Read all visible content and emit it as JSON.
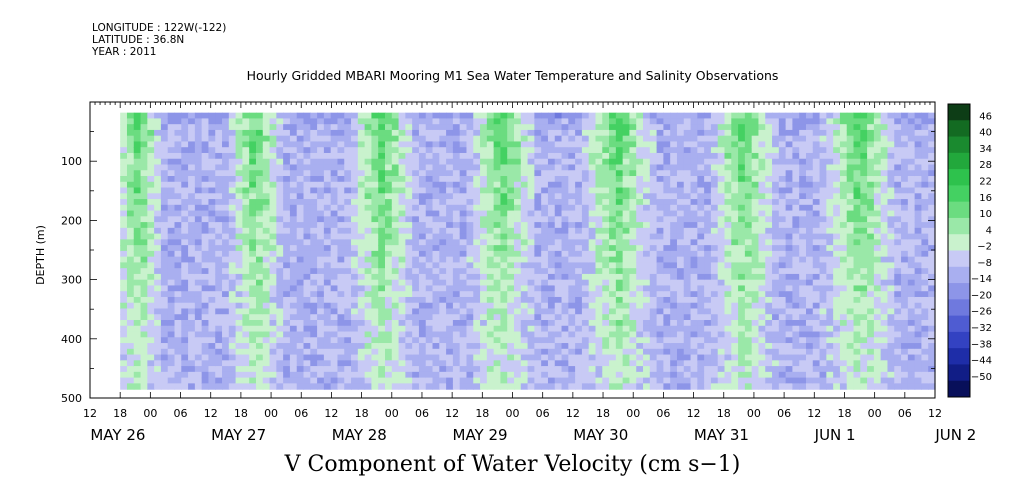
{
  "header": {
    "longitude": "LONGITUDE : 122W(-122)",
    "latitude": "LATITUDE : 36.8N",
    "year": "YEAR : 2011"
  },
  "chart_data": {
    "type": "heatmap",
    "title": "Hourly Gridded MBARI Mooring M1 Sea Water Temperature and Salinity Observations",
    "subtitle": "V Component of Water Velocity (cm s−1)",
    "ylabel": "DEPTH (m)",
    "xlabel": "",
    "y_axis": {
      "range": [
        500,
        0
      ],
      "ticks": [
        "100",
        "200",
        "300",
        "400",
        "500"
      ]
    },
    "x_axis": {
      "range_hours": [
        0,
        168
      ],
      "hour_labels": [
        "12",
        "18",
        "00",
        "06",
        "12",
        "18",
        "00",
        "06",
        "12",
        "18",
        "00",
        "06",
        "12",
        "18",
        "00",
        "06",
        "12",
        "18",
        "00",
        "06",
        "12",
        "18",
        "00",
        "06",
        "12",
        "18",
        "00",
        "06",
        "12"
      ],
      "day_labels": [
        "MAY 26",
        "MAY 27",
        "MAY 28",
        "MAY 29",
        "MAY 30",
        "MAY 31",
        "JUN  1",
        "JUN  2"
      ]
    },
    "colorbar": {
      "labels": [
        "46",
        "40",
        "34",
        "28",
        "22",
        "16",
        "10",
        "4",
        "−2",
        "−8",
        "−14",
        "−20",
        "−26",
        "−32",
        "−38",
        "−44",
        "−50"
      ],
      "colors": [
        "#0d3d16",
        "#136b22",
        "#1a8a2f",
        "#22a83c",
        "#2ec24d",
        "#44d162",
        "#6bdc80",
        "#9ae8a8",
        "#c9f2cd",
        "#c8caf5",
        "#a9aff0",
        "#8d95e8",
        "#6f79de",
        "#4f5cd2",
        "#3342c2",
        "#1e2da8",
        "#111d86",
        "#080f5a"
      ],
      "range": [
        -50,
        52
      ]
    },
    "field_description_bands": [
      {
        "from_hour": 7,
        "to_hour": 12,
        "level": "positive"
      },
      {
        "from_hour": 30,
        "to_hour": 36,
        "level": "positive"
      },
      {
        "from_hour": 54,
        "to_hour": 62,
        "level": "positive"
      },
      {
        "from_hour": 78,
        "to_hour": 86,
        "level": "positive"
      },
      {
        "from_hour": 100,
        "to_hour": 110,
        "level": "positive"
      },
      {
        "from_hour": 126,
        "to_hour": 134,
        "level": "positive"
      },
      {
        "from_hour": 148,
        "to_hour": 158,
        "level": "positive"
      }
    ]
  }
}
